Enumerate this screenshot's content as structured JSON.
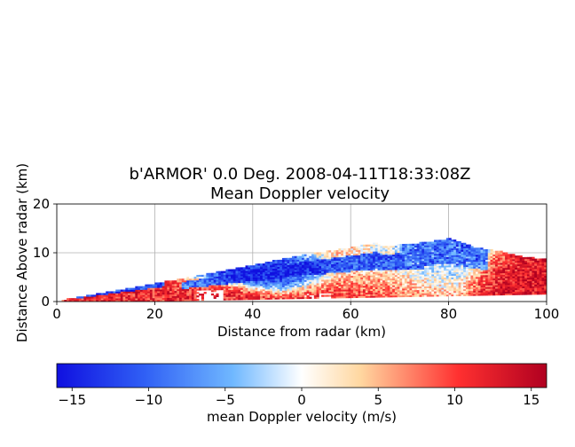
{
  "chart_data": [
    {
      "type": "heatmap",
      "title": "b'ARMOR' 0.0 Deg. 2008-04-11T18:33:08Z",
      "subtitle": "Mean Doppler velocity",
      "xlabel": "Distance from radar (km)",
      "ylabel": "Distance Above radar  (km)",
      "xlim": [
        0,
        100
      ],
      "ylim": [
        0,
        20
      ],
      "xticks": [
        "0",
        "20",
        "40",
        "60",
        "80",
        "100"
      ],
      "yticks": [
        "0",
        "10",
        "20"
      ],
      "grid": true,
      "echo_top_profile": {
        "x": [
          0,
          10,
          20,
          30,
          40,
          50,
          60,
          65,
          66,
          70,
          75,
          80,
          82,
          85,
          90,
          95,
          100
        ],
        "y": [
          0,
          1.8,
          3.6,
          5.4,
          7.4,
          9.4,
          11.0,
          11.8,
          11.2,
          11.5,
          12.0,
          12.8,
          12.2,
          11.0,
          10.2,
          9.0,
          8.5
        ]
      },
      "dominant_velocity_regions": [
        {
          "x_range": [
            10,
            35
          ],
          "y_range": [
            0,
            5
          ],
          "sign": "positive",
          "approx_ms": 11
        },
        {
          "x_range": [
            25,
            55
          ],
          "y_range": [
            4,
            9
          ],
          "sign": "negative",
          "approx_ms": -13
        },
        {
          "x_range": [
            55,
            80
          ],
          "y_range": [
            1,
            11
          ],
          "sign": "positive",
          "approx_ms": 12
        },
        {
          "x_range": [
            60,
            85
          ],
          "y_range": [
            3,
            12
          ],
          "sign": "negative",
          "approx_ms": -10
        },
        {
          "x_range": [
            85,
            100
          ],
          "y_range": [
            1,
            9
          ],
          "sign": "positive",
          "approx_ms": 13
        }
      ]
    },
    {
      "type": "colorbar",
      "label": "mean Doppler velocity (m/s)",
      "range": [
        -16,
        16
      ],
      "ticks": [
        "−15",
        "−10",
        "−5",
        "0",
        "5",
        "10",
        "15"
      ],
      "tick_values": [
        -15,
        -10,
        -5,
        0,
        5,
        10,
        15
      ],
      "colormap": [
        "#1010e0",
        "#3060f5",
        "#70b8ff",
        "#ffffff",
        "#ffd7a0",
        "#ff3030",
        "#b00020"
      ]
    }
  ]
}
